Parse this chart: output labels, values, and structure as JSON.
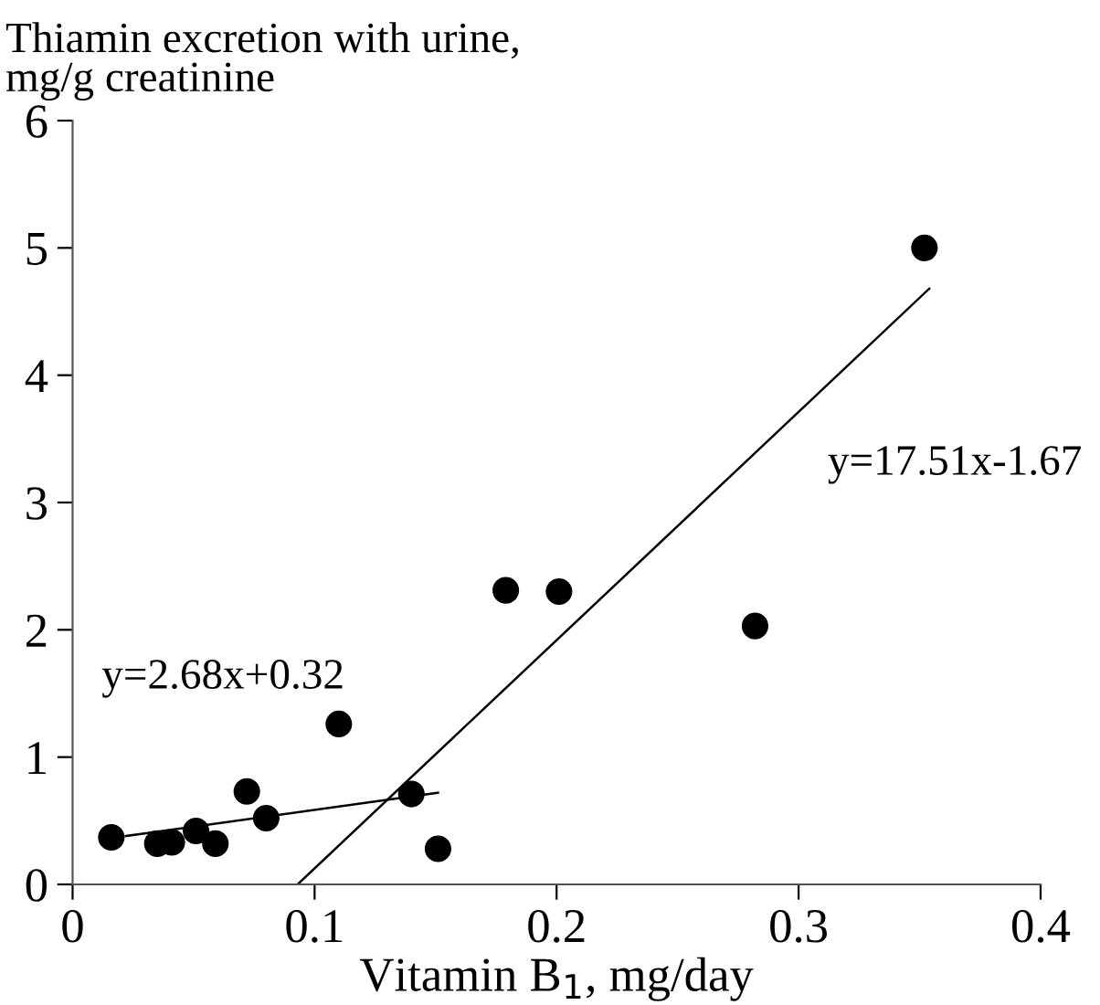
{
  "chart_data": {
    "type": "scatter",
    "ylabel": "Thiamin excretion with urine,\nmg/g creatinine",
    "xlabel": "Vitamin B$_{1}$, mg/day",
    "xlim": [
      0,
      0.4
    ],
    "xticks": [
      0,
      0.1,
      0.2,
      0.3,
      0.4
    ],
    "ylim": [
      0,
      6
    ],
    "yticks": [
      0,
      1,
      2,
      3,
      4,
      5,
      6
    ],
    "grid": false,
    "legend": false,
    "series": [
      {
        "color": "#000000",
        "marker": "circle",
        "x": [
          0.016,
          0.035,
          0.041,
          0.051,
          0.059,
          0.072,
          0.08,
          0.11,
          0.14,
          0.151,
          0.179,
          0.201,
          0.282,
          0.352
        ],
        "values": [
          0.37,
          0.32,
          0.33,
          0.42,
          0.32,
          0.73,
          0.52,
          1.26,
          0.71,
          0.28,
          2.31,
          2.3,
          2.03,
          5.0
        ]
      },
      {
        "type": "line",
        "color": "#000000",
        "marker": "none",
        "line_style": "solid",
        "x": [
          0.022,
          0.151
        ],
        "values": [
          0.38,
          0.72
        ]
      },
      {
        "type": "line",
        "color": "#000000",
        "marker": "none",
        "line_style": "solid",
        "x": [
          0.093,
          0.354
        ],
        "values": [
          0,
          4.68
        ]
      }
    ],
    "annotations": [
      "y=2.68x+0.32",
      "y=17.51x-1.67"
    ]
  }
}
